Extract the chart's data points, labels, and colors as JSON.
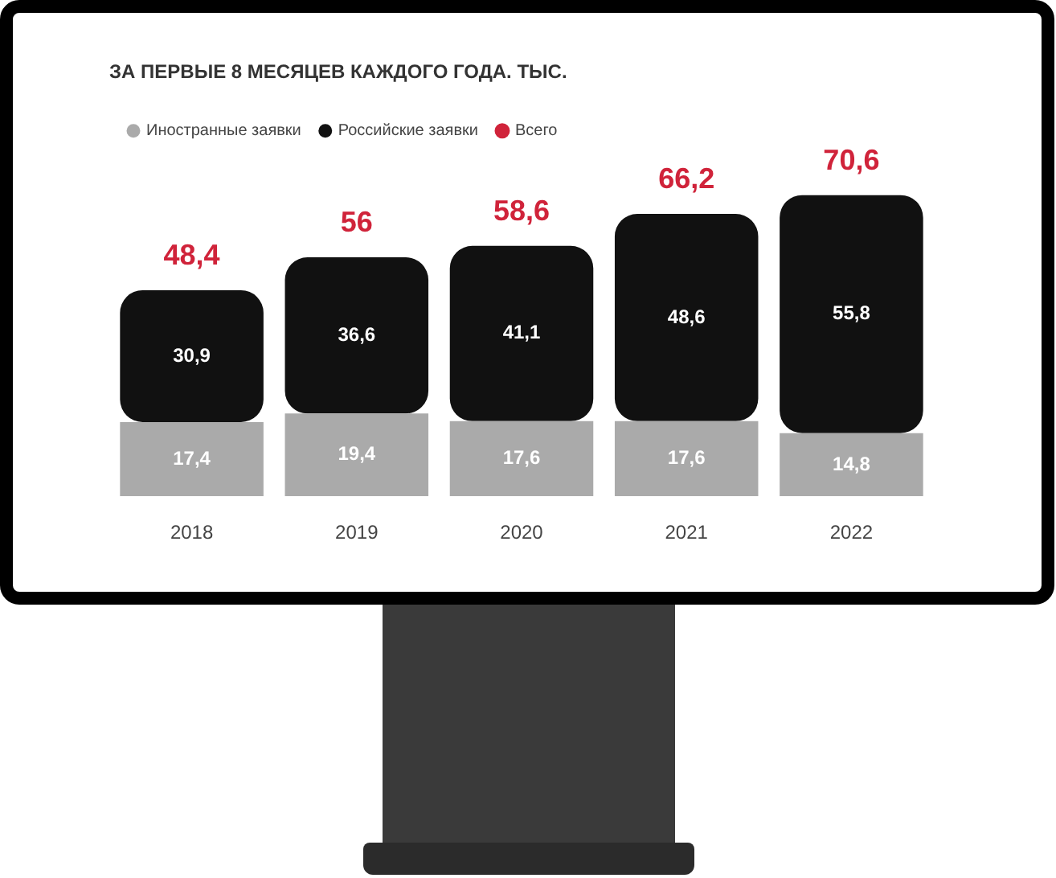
{
  "chart_data": {
    "type": "bar",
    "title": "ЗА ПЕРВЫЕ 8 МЕСЯЦЕВ КАЖДОГО ГОДА. ТЫС.",
    "categories": [
      "2018",
      "2019",
      "2020",
      "2021",
      "2022"
    ],
    "stacked": true,
    "legend": "top left",
    "grid": false,
    "totals": [
      "48,4",
      "56",
      "58,6",
      "66,2",
      "70,6"
    ],
    "series": [
      {
        "name": "Иностранные заявки",
        "color": "#aaaaaa",
        "values": [
          17.4,
          19.4,
          17.6,
          17.6,
          14.8
        ],
        "value_labels": [
          "17,4",
          "19,4",
          "17,6",
          "17,6",
          "14,8"
        ]
      },
      {
        "name": "Российские заявки",
        "color": "#111111",
        "values": [
          30.9,
          36.6,
          41.1,
          48.6,
          55.8
        ],
        "value_labels": [
          "30,9",
          "36,6",
          "41,1",
          "48,6",
          "55,8"
        ]
      },
      {
        "name": "Всего",
        "color": "#d0233a",
        "type": "scatter",
        "values": [
          null,
          null,
          null,
          null,
          null
        ]
      }
    ]
  }
}
